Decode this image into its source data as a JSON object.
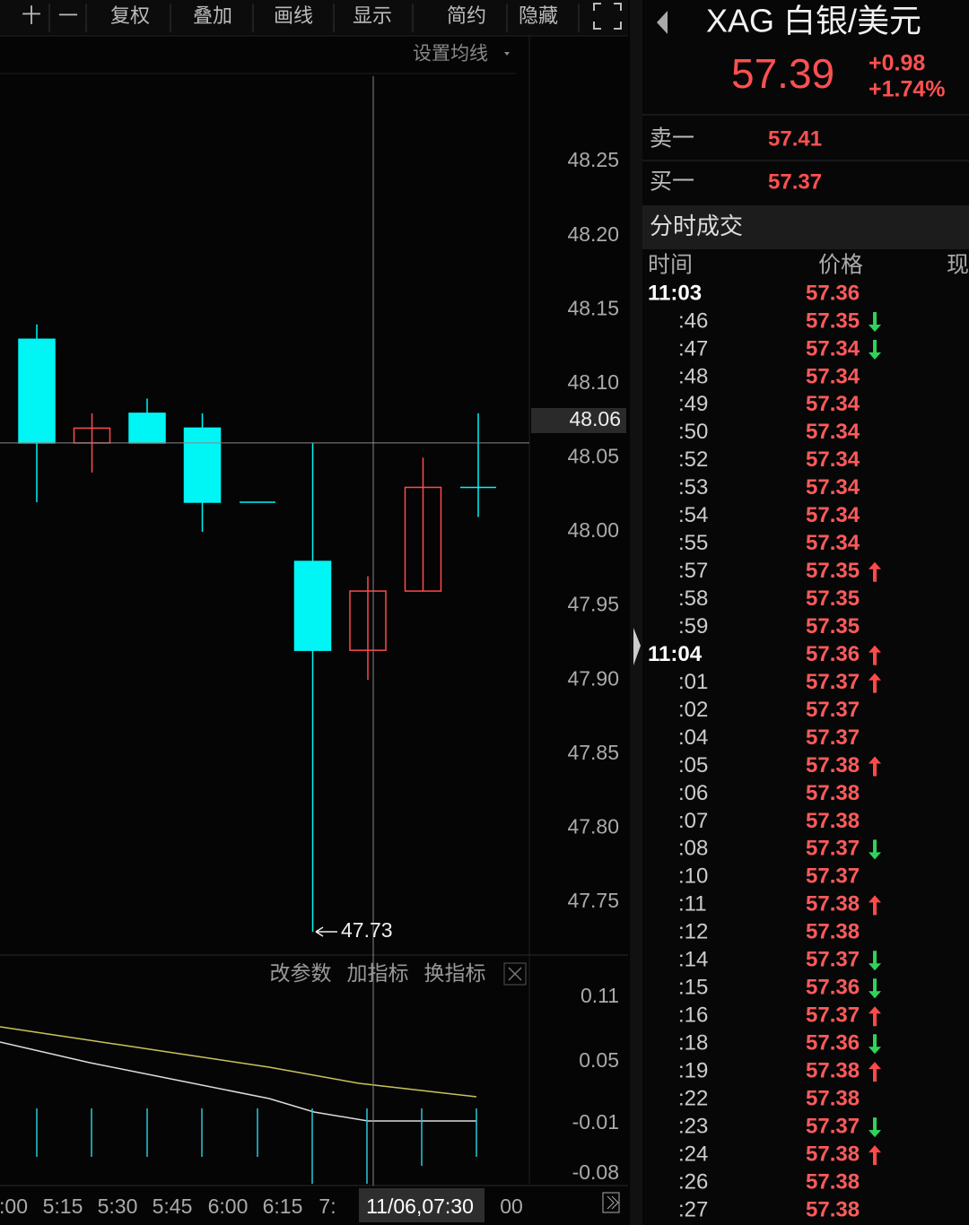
{
  "toolbar": {
    "items": [
      "十",
      "一",
      "复权",
      "叠加",
      "画线",
      "显示",
      "简约",
      "隐藏"
    ]
  },
  "chart_data": {
    "type": "candlestick",
    "ma_button": "设置均线",
    "ylim": [
      47.71,
      48.31
    ],
    "yticks": [
      48.25,
      {
        "value": 48.2,
        "label": "48.20"
      },
      48.15,
      {
        "value": 48.1,
        "label": "48.10"
      },
      48.05,
      {
        "value": 48,
        "label": "48.00"
      },
      47.95,
      {
        "value": 47.9,
        "label": "47.90"
      },
      47.85,
      {
        "value": 47.8,
        "label": "47.80"
      },
      47.75
    ],
    "open": [
      48.13,
      48.06,
      48.08,
      48.07,
      48.02,
      47.98,
      47.92,
      47.96,
      48.03
    ],
    "high": [
      48.14,
      48.08,
      48.09,
      48.08,
      48.02,
      48.06,
      47.97,
      48.05,
      48.08
    ],
    "low": [
      48.02,
      48.04,
      48.06,
      48.0,
      48.02,
      47.73,
      47.9,
      47.96,
      48.01
    ],
    "close": [
      48.06,
      48.07,
      48.06,
      48.02,
      48.02,
      47.92,
      47.96,
      48.03,
      48.03
    ],
    "up_color": "#ff4a4a",
    "down_color": "#00f5f5",
    "crosshair": 48.06,
    "low_label": 47.73,
    "x_labels": [
      ":00",
      "5:15",
      "5:30",
      "5:45",
      "6:00",
      "6:15",
      "7:",
      "11/06,07:30",
      "00"
    ]
  },
  "indicator": {
    "buttons": [
      "改参数",
      "加指标",
      "换指标"
    ],
    "ticks": [
      "0.11",
      "0.05",
      "-0.01",
      "-0.08"
    ]
  },
  "quote": {
    "symbol": "XAG 白银/美元",
    "price": "57.39",
    "change": "+0.98",
    "change_pct": "+1.74%",
    "sell_label": "卖一",
    "sell": "57.41",
    "buy_label": "买一",
    "buy": "57.37"
  },
  "trades": {
    "title": "分时成交",
    "headers": [
      "时间",
      "价格",
      "现"
    ],
    "rows": [
      {
        "time": "11:03",
        "price": "57.36",
        "arrow": null
      },
      {
        "time": ":46",
        "price": "57.35",
        "arrow": "down"
      },
      {
        "time": ":47",
        "price": "57.34",
        "arrow": "down"
      },
      {
        "time": ":48",
        "price": "57.34",
        "arrow": null
      },
      {
        "time": ":49",
        "price": "57.34",
        "arrow": null
      },
      {
        "time": ":50",
        "price": "57.34",
        "arrow": null
      },
      {
        "time": ":52",
        "price": "57.34",
        "arrow": null
      },
      {
        "time": ":53",
        "price": "57.34",
        "arrow": null
      },
      {
        "time": ":54",
        "price": "57.34",
        "arrow": null
      },
      {
        "time": ":55",
        "price": "57.34",
        "arrow": null
      },
      {
        "time": ":57",
        "price": "57.35",
        "arrow": "up"
      },
      {
        "time": ":58",
        "price": "57.35",
        "arrow": null
      },
      {
        "time": ":59",
        "price": "57.35",
        "arrow": null
      },
      {
        "time": "11:04",
        "price": "57.36",
        "arrow": "up"
      },
      {
        "time": ":01",
        "price": "57.37",
        "arrow": "up"
      },
      {
        "time": ":02",
        "price": "57.37",
        "arrow": null
      },
      {
        "time": ":04",
        "price": "57.37",
        "arrow": null
      },
      {
        "time": ":05",
        "price": "57.38",
        "arrow": "up"
      },
      {
        "time": ":06",
        "price": "57.38",
        "arrow": null
      },
      {
        "time": ":07",
        "price": "57.38",
        "arrow": null
      },
      {
        "time": ":08",
        "price": "57.37",
        "arrow": "down"
      },
      {
        "time": ":10",
        "price": "57.37",
        "arrow": null
      },
      {
        "time": ":11",
        "price": "57.38",
        "arrow": "up"
      },
      {
        "time": ":12",
        "price": "57.38",
        "arrow": null
      },
      {
        "time": ":14",
        "price": "57.37",
        "arrow": "down"
      },
      {
        "time": ":15",
        "price": "57.36",
        "arrow": "down"
      },
      {
        "time": ":16",
        "price": "57.37",
        "arrow": "up"
      },
      {
        "time": ":18",
        "price": "57.36",
        "arrow": "down"
      },
      {
        "time": ":19",
        "price": "57.38",
        "arrow": "up"
      },
      {
        "time": ":22",
        "price": "57.38",
        "arrow": null
      },
      {
        "time": ":23",
        "price": "57.37",
        "arrow": "down"
      },
      {
        "time": ":24",
        "price": "57.38",
        "arrow": "up"
      },
      {
        "time": ":26",
        "price": "57.38",
        "arrow": null
      },
      {
        "time": ":27",
        "price": "57.38",
        "arrow": null
      }
    ]
  }
}
